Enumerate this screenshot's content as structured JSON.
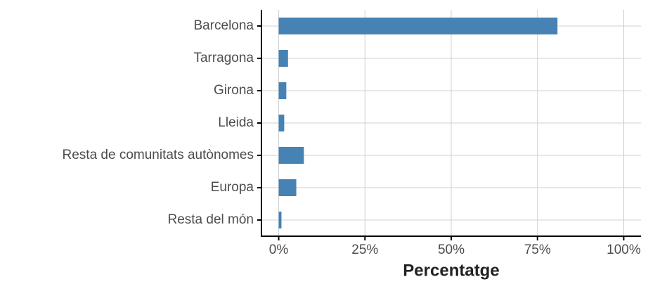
{
  "chart_data": {
    "type": "bar",
    "orientation": "horizontal",
    "x_label": "Percentatge",
    "categories": [
      "Barcelona",
      "Tarragona",
      "Girona",
      "Lleida",
      "Resta de comunitats autònomes",
      "Europa",
      "Resta del món"
    ],
    "values": [
      80.8,
      2.7,
      2.2,
      1.6,
      7.3,
      5.1,
      0.8
    ],
    "color": "#4682b4",
    "xlim": [
      -5,
      105
    ],
    "xticks": [
      {
        "value": 0,
        "label": "0%"
      },
      {
        "value": 25,
        "label": "25%"
      },
      {
        "value": 50,
        "label": "50%"
      },
      {
        "value": 75,
        "label": "75%"
      },
      {
        "value": 100,
        "label": "100%"
      }
    ],
    "grid": true
  }
}
